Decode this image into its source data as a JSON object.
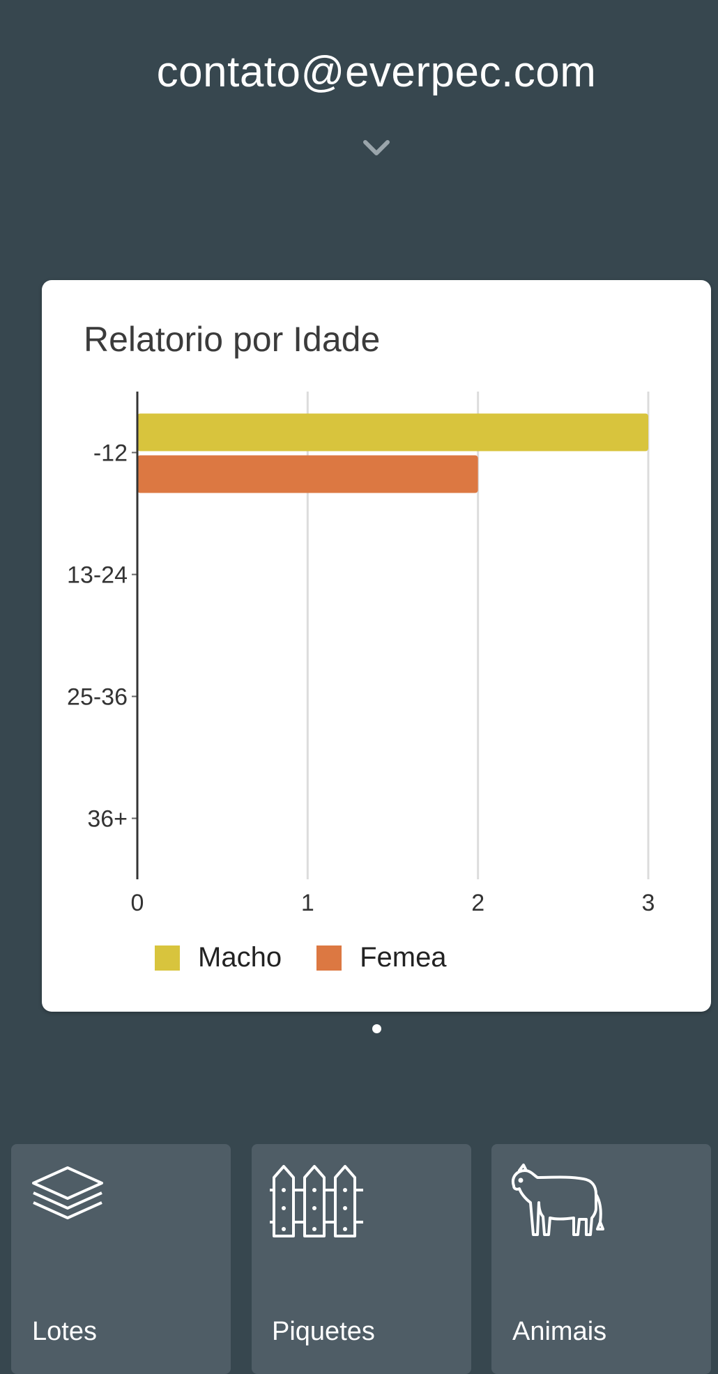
{
  "header": {
    "account_email": "contato@everpec.com",
    "account_menu_icon": "chevron-down-icon"
  },
  "report_card": {
    "title": "Relatorio por Idade"
  },
  "chart_data": {
    "type": "bar",
    "orientation": "horizontal",
    "title": "Relatorio por Idade",
    "categories": [
      "-12",
      "13-24",
      "25-36",
      "36+"
    ],
    "series": [
      {
        "name": "Macho",
        "values": [
          3,
          0,
          0,
          0
        ],
        "color": "#d8c43d"
      },
      {
        "name": "Femea",
        "values": [
          2,
          0,
          0,
          0
        ],
        "color": "#dc7842"
      }
    ],
    "x_ticks": [
      "0",
      "1",
      "2",
      "3"
    ],
    "xlim": [
      0,
      3
    ],
    "grid": true,
    "legend": "bottom-left"
  },
  "pager": {
    "active_index": 0,
    "count": 1
  },
  "nav_tiles": [
    {
      "label": "Lotes",
      "icon": "layers-icon"
    },
    {
      "label": "Piquetes",
      "icon": "fence-icon"
    },
    {
      "label": "Animais",
      "icon": "cow-icon"
    }
  ],
  "colors": {
    "background": "#37474f",
    "tile": "#4f5d66",
    "card": "#ffffff",
    "macho": "#d8c43d",
    "femea": "#dc7842"
  }
}
